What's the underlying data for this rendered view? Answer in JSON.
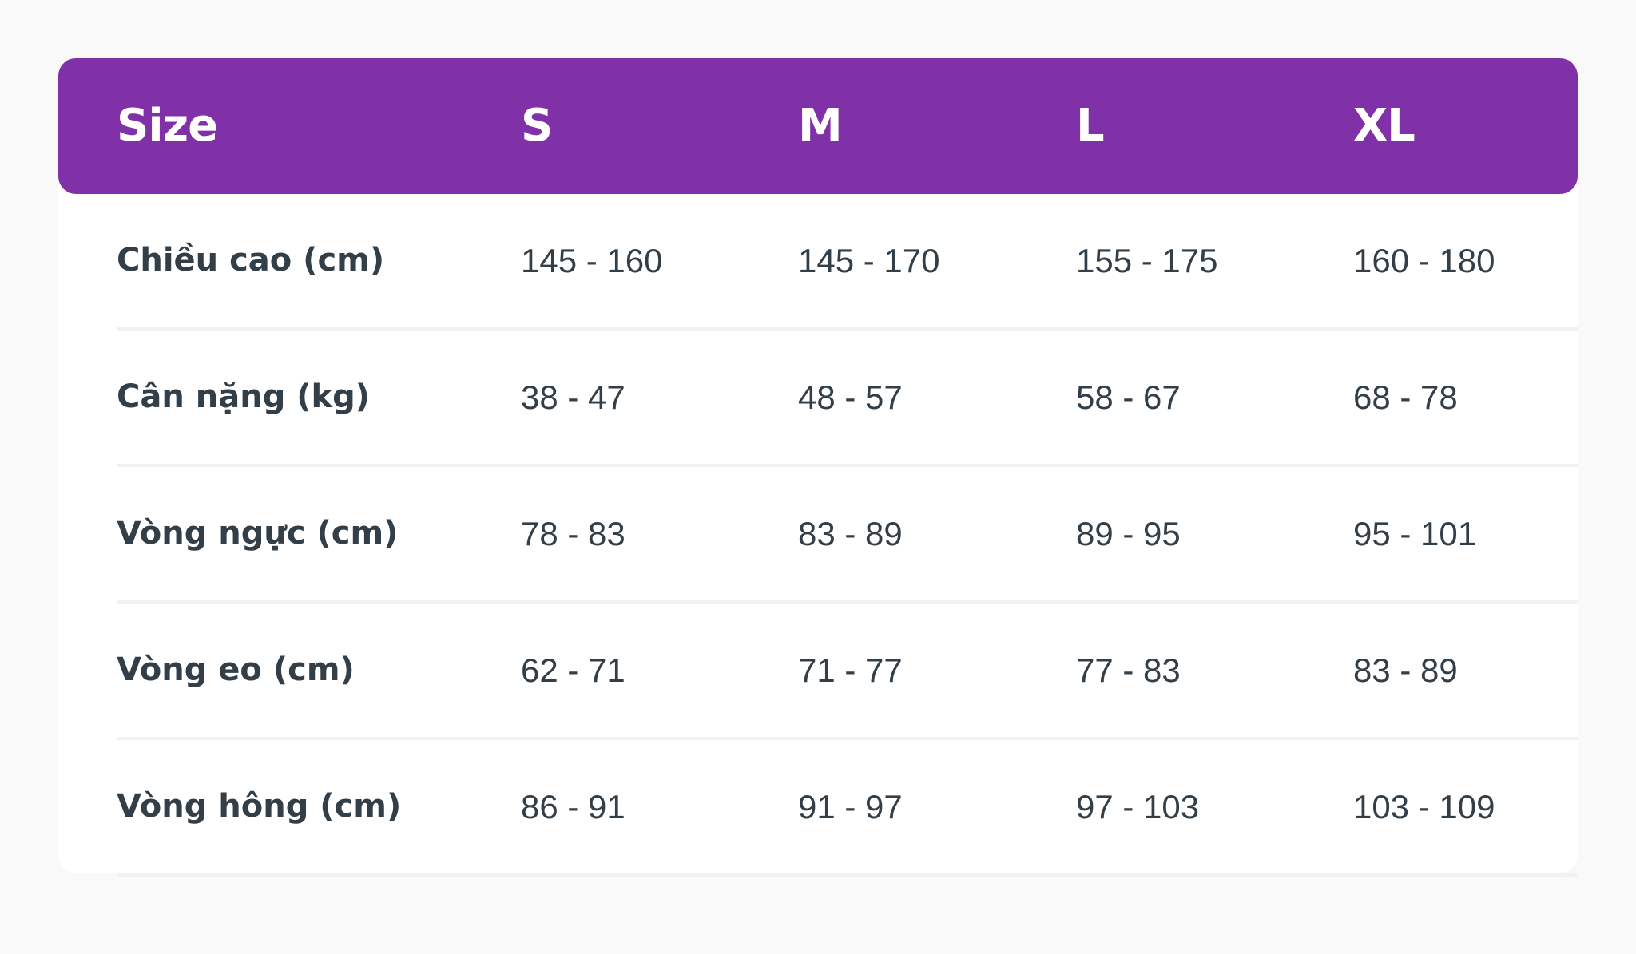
{
  "colors": {
    "header_bg": "#8031a7",
    "text": "#333f48",
    "divider": "#f1f2f4",
    "background": "#f9f9f9"
  },
  "header": [
    "Size",
    "S",
    "M",
    "L",
    "XL"
  ],
  "rows": [
    {
      "label": "Chiều cao (cm)",
      "values": [
        "145 - 160",
        "145 - 170",
        "155 - 175",
        "160 - 180"
      ]
    },
    {
      "label": "Cân nặng (kg)",
      "values": [
        "38 - 47",
        "48 - 57",
        "58 - 67",
        "68 - 78"
      ]
    },
    {
      "label": "Vòng ngực (cm)",
      "values": [
        "78 - 83",
        "83 - 89",
        "89 - 95",
        "95 - 101"
      ]
    },
    {
      "label": "Vòng eo (cm)",
      "values": [
        "62 - 71",
        "71 - 77",
        "77 - 83",
        "83 - 89"
      ]
    },
    {
      "label": "Vòng hông (cm)",
      "values": [
        "86 - 91",
        "91 - 97",
        "97 - 103",
        "103 - 109"
      ]
    }
  ]
}
